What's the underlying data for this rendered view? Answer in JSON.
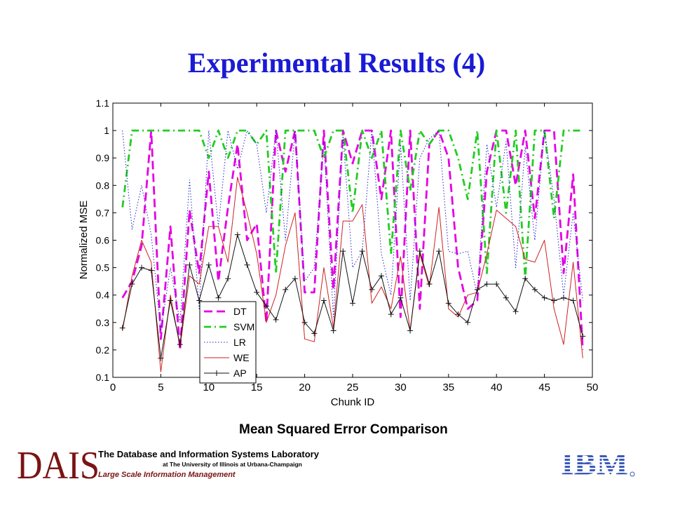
{
  "slide": {
    "title": "Experimental Results (4)",
    "caption": "Mean Squared Error Comparison"
  },
  "footer": {
    "dais_logo": "DAIS",
    "dais_line1": "The Database and Information Systems Laboratory",
    "dais_line2": "at The University of Illinois at Urbana-Champaign",
    "dais_line3": "Large Scale Information Management",
    "ibm_logo": "IBM",
    "colors": {
      "dais": "#7a1414",
      "ibm": "#3a5ab8"
    }
  },
  "chart_data": {
    "type": "line",
    "title": "",
    "xlabel": "Chunk ID",
    "ylabel": "Normalized MSE",
    "xlim": [
      0,
      50
    ],
    "ylim": [
      0.1,
      1.1
    ],
    "xticks": [
      "0",
      "5",
      "10",
      "15",
      "20",
      "25",
      "30",
      "35",
      "40",
      "45",
      "50"
    ],
    "yticks": [
      "0.1",
      "0.2",
      "0.3",
      "0.4",
      "0.5",
      "0.6",
      "0.7",
      "0.8",
      "0.9",
      "1",
      "1.1"
    ],
    "grid": false,
    "legend_position": "lower-left",
    "x": [
      1,
      2,
      3,
      4,
      5,
      6,
      7,
      8,
      9,
      10,
      11,
      12,
      13,
      14,
      15,
      16,
      17,
      18,
      19,
      20,
      21,
      22,
      23,
      24,
      25,
      26,
      27,
      28,
      29,
      30,
      31,
      32,
      33,
      34,
      35,
      36,
      37,
      38,
      39,
      40,
      41,
      42,
      43,
      44,
      45,
      46,
      47,
      48,
      49
    ],
    "series": [
      {
        "name": "DT",
        "color": "#e400e4",
        "style": "dashed",
        "values": [
          0.39,
          0.45,
          0.58,
          1.0,
          0.24,
          0.65,
          0.2,
          0.71,
          0.48,
          0.85,
          0.45,
          0.72,
          0.95,
          0.6,
          0.66,
          0.3,
          1.0,
          0.85,
          1.0,
          0.41,
          0.41,
          1.0,
          0.42,
          1.0,
          0.88,
          1.0,
          1.0,
          0.75,
          1.0,
          0.32,
          1.0,
          0.35,
          0.95,
          1.0,
          0.9,
          0.5,
          0.35,
          0.38,
          0.85,
          1.0,
          1.0,
          0.8,
          1.0,
          0.68,
          1.0,
          1.0,
          0.48,
          0.84,
          0.2
        ]
      },
      {
        "name": "SVM",
        "color": "#22cc22",
        "style": "dashdot",
        "values": [
          0.72,
          1.0,
          1.0,
          1.0,
          1.0,
          1.0,
          1.0,
          1.0,
          1.0,
          0.9,
          1.0,
          0.9,
          1.0,
          1.0,
          0.95,
          1.0,
          0.48,
          1.0,
          1.0,
          1.0,
          1.0,
          0.9,
          1.0,
          1.0,
          0.7,
          1.0,
          0.9,
          1.0,
          0.55,
          1.0,
          0.78,
          1.0,
          0.95,
          1.0,
          1.0,
          0.9,
          0.75,
          1.0,
          0.48,
          1.0,
          0.7,
          1.0,
          0.46,
          1.0,
          1.0,
          0.68,
          1.0,
          1.0,
          1.0
        ]
      },
      {
        "name": "LR",
        "color": "#2222cc",
        "style": "dotted",
        "values": [
          1.0,
          0.64,
          0.8,
          0.62,
          0.27,
          0.5,
          0.3,
          0.82,
          0.35,
          1.0,
          0.65,
          1.0,
          0.86,
          1.0,
          0.95,
          0.7,
          1.0,
          0.6,
          1.0,
          0.45,
          0.5,
          0.96,
          0.32,
          0.98,
          0.5,
          0.56,
          1.0,
          0.55,
          0.4,
          0.95,
          0.38,
          0.9,
          0.97,
          1.0,
          0.56,
          0.55,
          0.56,
          0.4,
          0.95,
          0.72,
          0.96,
          0.5,
          0.94,
          0.6,
          1.0,
          0.75,
          0.4,
          0.7,
          0.38
        ]
      },
      {
        "name": "WE",
        "color": "#cc2222",
        "style": "solid",
        "values": [
          0.27,
          0.47,
          0.6,
          0.52,
          0.12,
          0.4,
          0.21,
          0.47,
          0.44,
          0.65,
          0.65,
          0.52,
          0.83,
          0.7,
          0.55,
          0.3,
          0.4,
          0.58,
          0.7,
          0.24,
          0.23,
          0.5,
          0.28,
          0.67,
          0.67,
          0.73,
          0.37,
          0.43,
          0.35,
          0.54,
          0.27,
          0.55,
          0.43,
          0.72,
          0.35,
          0.32,
          0.4,
          0.41,
          0.55,
          0.71,
          0.68,
          0.65,
          0.53,
          0.52,
          0.6,
          0.35,
          0.22,
          0.52,
          0.17
        ]
      },
      {
        "name": "AP",
        "color": "#111111",
        "style": "solid-plus",
        "values": [
          0.28,
          0.44,
          0.5,
          0.49,
          0.17,
          0.38,
          0.22,
          0.51,
          0.38,
          0.51,
          0.39,
          0.46,
          0.62,
          0.51,
          0.41,
          0.36,
          0.31,
          0.42,
          0.46,
          0.3,
          0.26,
          0.38,
          0.27,
          0.56,
          0.37,
          0.56,
          0.42,
          0.47,
          0.33,
          0.39,
          0.27,
          0.56,
          0.44,
          0.56,
          0.37,
          0.33,
          0.3,
          0.42,
          0.44,
          0.44,
          0.39,
          0.34,
          0.46,
          0.42,
          0.39,
          0.38,
          0.39,
          0.38,
          0.25
        ]
      }
    ]
  }
}
